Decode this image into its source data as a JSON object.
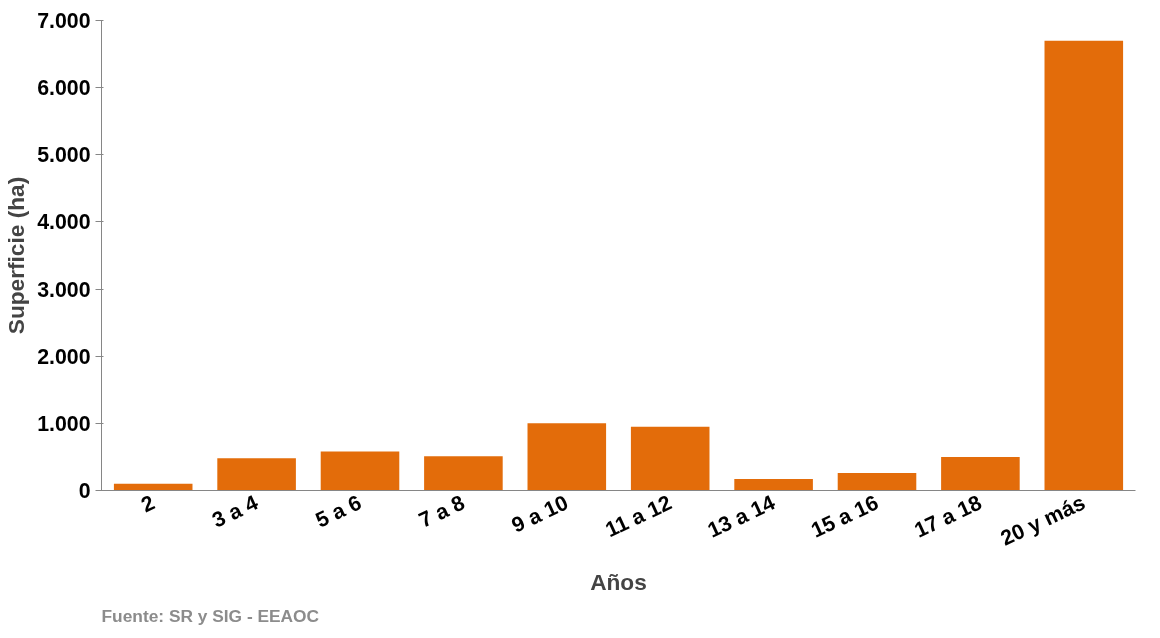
{
  "chart_data": {
    "type": "bar",
    "xlabel": "Años",
    "ylabel": "Superficie (ha)",
    "categories": [
      "2",
      "3 a 4",
      "5 a 6",
      "7 a 8",
      "9 a 10",
      "11 a 12",
      "13 a 14",
      "15 a 16",
      "17 a 18",
      "20 y más"
    ],
    "values": [
      100,
      480,
      580,
      510,
      1000,
      950,
      170,
      260,
      500,
      6700
    ],
    "color": "#e36c0a",
    "ylim": [
      0,
      7000
    ],
    "yticks": [
      0,
      {
        "value": 1000,
        "label": "1.000"
      },
      {
        "value": 2000,
        "label": "2.000"
      },
      {
        "value": 3000,
        "label": "3.000"
      },
      {
        "value": 4000,
        "label": "4.000"
      },
      {
        "value": 5000,
        "label": "5.000"
      },
      {
        "value": 6000,
        "label": "6.000"
      },
      {
        "value": 7000,
        "label": "7.000"
      }
    ],
    "grid": false,
    "annotations": [
      "Fuente: SR y SIG - EEAOC"
    ]
  }
}
